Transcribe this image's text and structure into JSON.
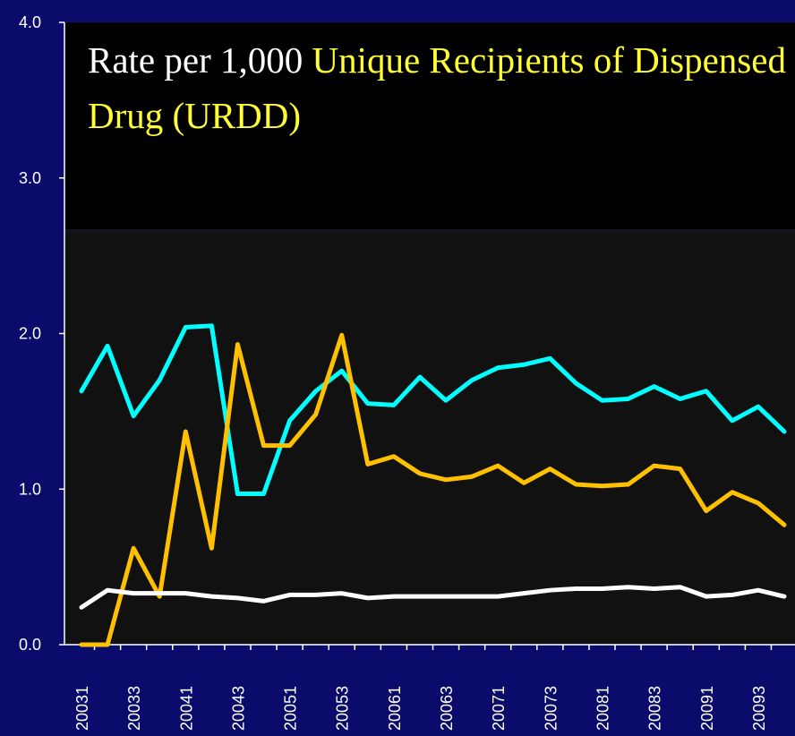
{
  "chart_data": {
    "type": "line",
    "title": "Rate per 1,000",
    "subtitle": "Unique Recipients of Dispensed Drug (URDD)",
    "categories": [
      "20031",
      null,
      "20033",
      null,
      "20041",
      null,
      "20043",
      null,
      "20051",
      null,
      "20053",
      null,
      "20061",
      null,
      "20063",
      null,
      "20071",
      null,
      "20073",
      null,
      "20081",
      null,
      "20083",
      null,
      "20091",
      null,
      "20093",
      null
    ],
    "series": [
      {
        "color": "#00ffff",
        "values": [
          1.63,
          1.92,
          1.47,
          1.7,
          2.04,
          2.05,
          0.97,
          0.97,
          1.44,
          1.63,
          1.76,
          1.55,
          1.54,
          1.72,
          1.57,
          1.7,
          1.78,
          1.8,
          1.84,
          1.68,
          1.57,
          1.58,
          1.66,
          1.58,
          1.63,
          1.44,
          1.53,
          1.37
        ]
      },
      {
        "color": "#ffc000",
        "values": [
          0,
          0,
          0.62,
          0.31,
          1.37,
          0.62,
          1.93,
          1.28,
          1.28,
          1.48,
          1.99,
          1.16,
          1.21,
          1.1,
          1.06,
          1.08,
          1.15,
          1.04,
          1.13,
          1.03,
          1.02,
          1.03,
          1.15,
          1.13,
          0.86,
          0.98,
          0.91,
          0.77
        ]
      },
      {
        "color": "#ffffff",
        "values": [
          0.24,
          0.35,
          0.33,
          0.33,
          0.33,
          0.31,
          0.3,
          0.28,
          0.32,
          0.32,
          0.33,
          0.3,
          0.31,
          0.31,
          0.31,
          0.31,
          0.31,
          0.33,
          0.35,
          0.36,
          0.36,
          0.37,
          0.36,
          0.37,
          0.31,
          0.32,
          0.35,
          0.31
        ]
      }
    ],
    "ylim": [
      0,
      4
    ],
    "yticks": [
      {
        "value": 0,
        "label": "0.0"
      },
      {
        "value": 1,
        "label": "1.0"
      },
      {
        "value": 2,
        "label": "2.0"
      },
      {
        "value": 3,
        "label": "3.0"
      },
      {
        "value": 4,
        "label": "4.0"
      }
    ]
  }
}
